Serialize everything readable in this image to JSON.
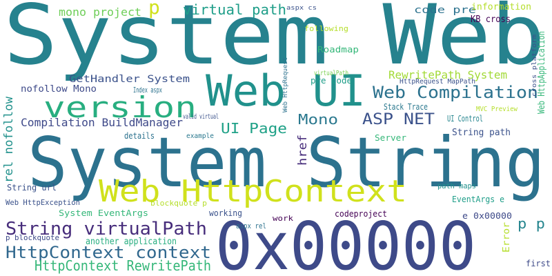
{
  "words": [
    "System Web",
    "System String",
    "0x00000",
    "Web UI",
    "Web HttpContext",
    "version",
    "String virtualPath",
    "HttpContext context",
    "HttpContext RewritePath",
    "Web Compilation",
    "virtual path",
    "mono project",
    "p",
    "ASP NET",
    "Mono",
    "UI Page",
    "Compilation BuildManager",
    "RewritePath System",
    "GetHandler System",
    "code pre",
    "information",
    "KB cross",
    "Roadmap",
    "pre code",
    "following",
    "virtualPath",
    "Stack Trace",
    "String path",
    "UI Control",
    "MVC Preview",
    "nofollow Mono",
    "Index aspx",
    "rel nofollow",
    "href",
    "Web HttpRequest",
    "details",
    "valid virtual",
    "example",
    "String url",
    "Web HttpException",
    "System EventArgs",
    "blockquote p",
    "working",
    "work",
    "aspx rel",
    "codeproject",
    "path maps",
    "EventArgs e",
    "e 0x00000",
    "p p",
    "another application",
    "p blockquote",
    "Error",
    "first",
    "Server",
    "Web HttpApplication",
    "cross platform",
    "HttpRequest MapPath",
    "aspx cs"
  ]
}
